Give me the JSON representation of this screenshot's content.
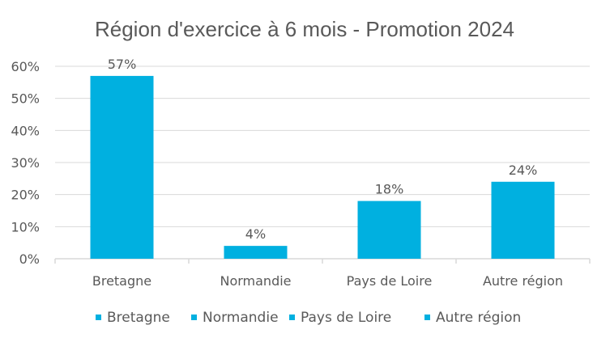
{
  "chart_data": {
    "type": "bar",
    "title": "Région d'exercice à 6 mois - Promotion 2024",
    "categories": [
      "Bretagne",
      "Normandie",
      "Pays de Loire",
      "Autre région"
    ],
    "values": [
      57,
      4,
      18,
      24
    ],
    "data_labels": [
      "57%",
      "4%",
      "18%",
      "24%"
    ],
    "ylim": [
      0,
      60
    ],
    "yticks": [
      "0%",
      "10%",
      "20%",
      "30%",
      "40%",
      "50%",
      "60%"
    ],
    "xlabel": "",
    "ylabel": "",
    "grid": true,
    "legend": {
      "placement": "bottom",
      "entries": [
        "Bretagne",
        "Normandie",
        "Pays de Loire",
        "Autre région"
      ]
    },
    "color": "#00B0E0"
  }
}
